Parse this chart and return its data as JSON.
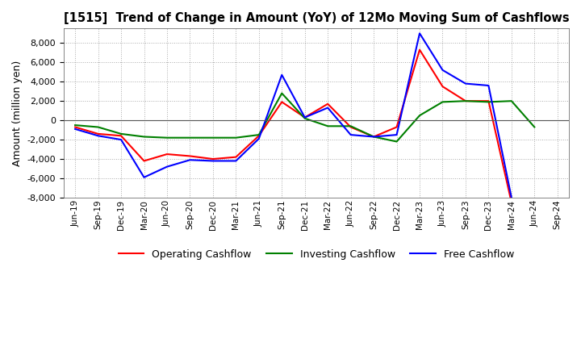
{
  "title": "[1515]  Trend of Change in Amount (YoY) of 12Mo Moving Sum of Cashflows",
  "ylabel": "Amount (million yen)",
  "ylim": [
    -8000,
    9500
  ],
  "yticks": [
    -8000,
    -6000,
    -4000,
    -2000,
    0,
    2000,
    4000,
    6000,
    8000
  ],
  "background_color": "#ffffff",
  "grid_color": "#aaaaaa",
  "x_labels": [
    "Jun-19",
    "Sep-19",
    "Dec-19",
    "Mar-20",
    "Jun-20",
    "Sep-20",
    "Dec-20",
    "Mar-21",
    "Jun-21",
    "Sep-21",
    "Dec-21",
    "Mar-22",
    "Jun-22",
    "Sep-22",
    "Dec-22",
    "Mar-23",
    "Jun-23",
    "Sep-23",
    "Dec-23",
    "Mar-24",
    "Jun-24",
    "Sep-24"
  ],
  "operating_cashflow": [
    -700,
    -1400,
    -1600,
    -4200,
    -3500,
    -3700,
    -4000,
    -3800,
    -1600,
    1900,
    300,
    1700,
    -700,
    -1700,
    -700,
    7300,
    3500,
    2000,
    2000,
    -8500,
    null,
    null
  ],
  "investing_cashflow": [
    -500,
    -700,
    -1400,
    -1700,
    -1800,
    -1800,
    -1800,
    -1800,
    -1500,
    2800,
    200,
    -600,
    -600,
    -1700,
    -2200,
    500,
    1900,
    2000,
    1900,
    2000,
    -700,
    null
  ],
  "free_cashflow": [
    -900,
    -1600,
    -2000,
    -5900,
    -4800,
    -4100,
    -4200,
    -4200,
    -1900,
    4700,
    300,
    1300,
    -1500,
    -1700,
    -1500,
    9000,
    5200,
    3800,
    3600,
    -8000,
    null,
    null
  ],
  "operating_color": "#ff0000",
  "investing_color": "#008000",
  "free_color": "#0000ff",
  "line_width": 1.5
}
